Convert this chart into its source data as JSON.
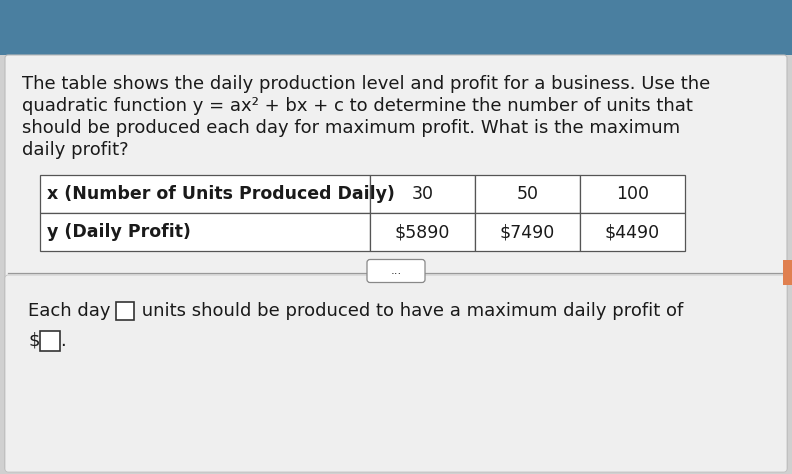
{
  "background_top_color": "#4a7fa0",
  "bg_page": "#d0d0d0",
  "bg_content": "#e8e8e8",
  "text_color": "#1a1a1a",
  "paragraph_lines": [
    "The table shows the daily production level and profit for a business. Use the",
    "quadratic function y = ax² + bx + c to determine the number of units that",
    "should be produced each day for maximum profit. What is the maximum",
    "daily profit?"
  ],
  "table_row1": [
    "x (Number of Units Produced Daily)",
    "30",
    "50",
    "100"
  ],
  "table_row2": [
    "y (Daily Profit)",
    "$5890",
    "$7490",
    "$4490"
  ],
  "ellipsis_text": "...",
  "footer_before_box1": "Each day ",
  "footer_after_box1": " units should be produced to have a maximum daily profit of",
  "footer_dollar": "$",
  "footer_dot": ".",
  "font_size_para": 13.0,
  "font_size_table": 12.5,
  "font_size_footer": 13.0,
  "orange_tab_color": "#e08050"
}
